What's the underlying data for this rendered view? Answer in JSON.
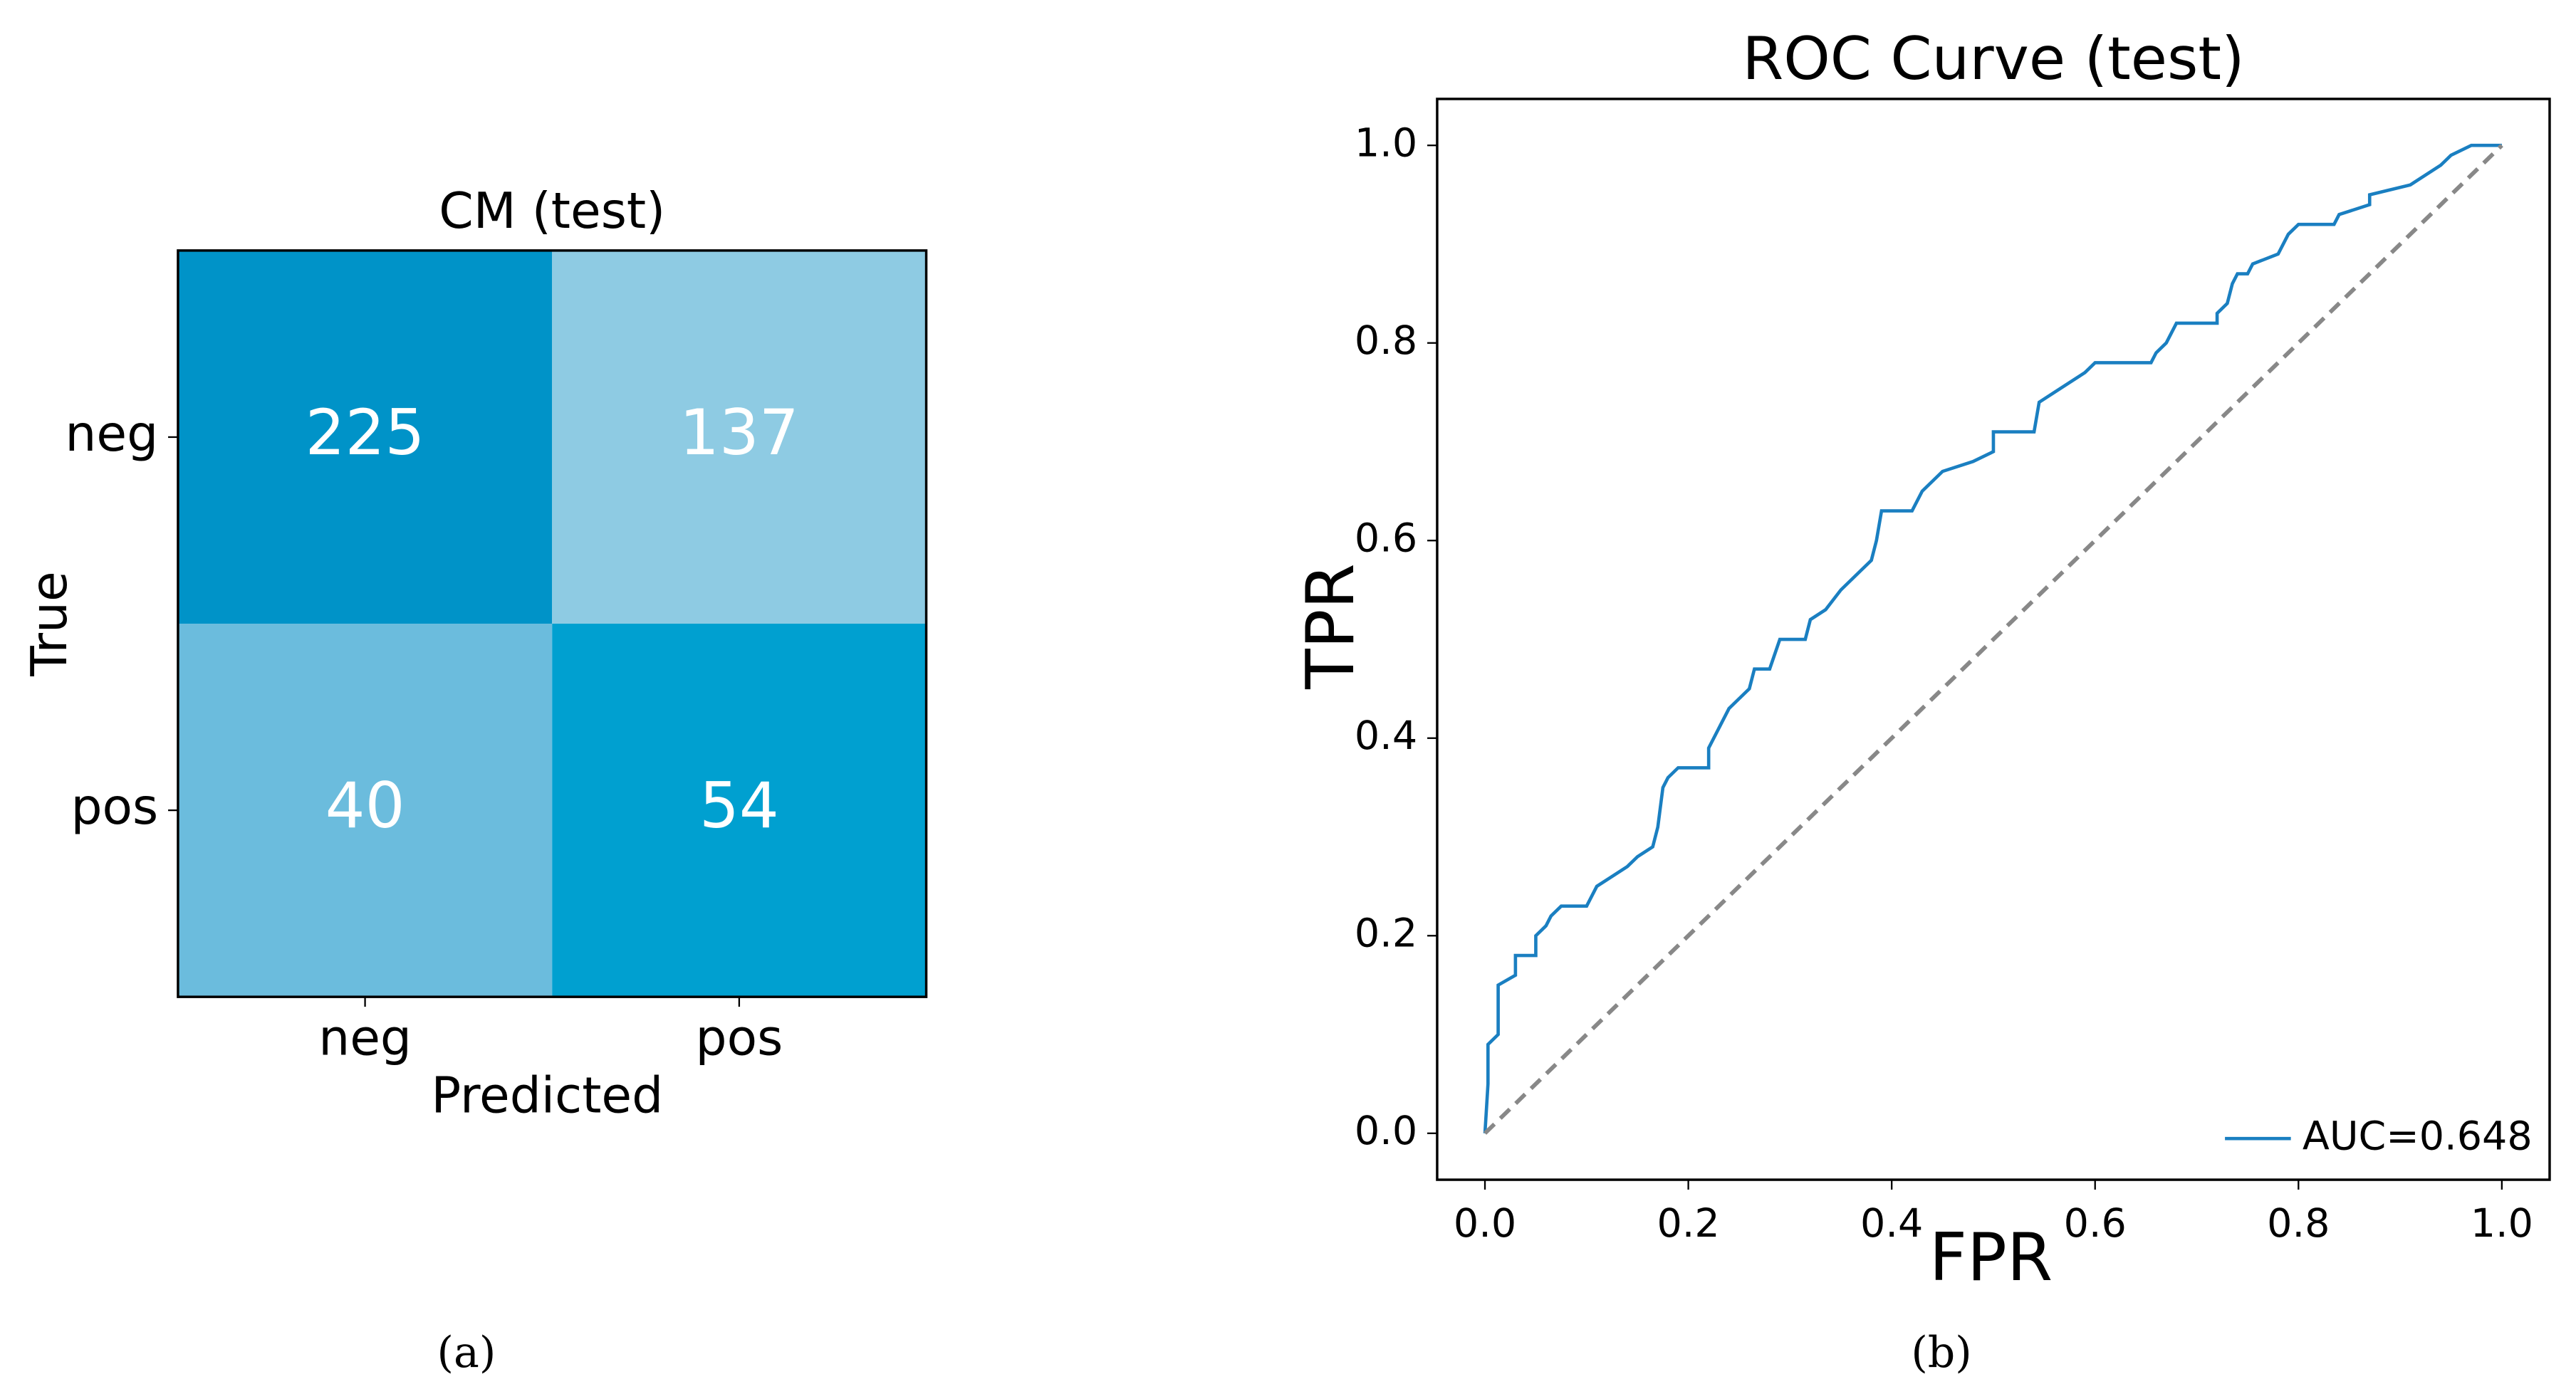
{
  "chart_data": [
    {
      "type": "heatmap",
      "title": "CM (test)",
      "xlabel": "Predicted",
      "ylabel": "True",
      "x_categories": [
        "neg",
        "pos"
      ],
      "y_categories": [
        "neg",
        "pos"
      ],
      "values": [
        [
          225,
          137
        ],
        [
          40,
          54
        ]
      ],
      "colors": [
        [
          "#0093c8",
          "#8ecbe3"
        ],
        [
          "#6bbcdd",
          "#00a0d0"
        ]
      ],
      "caption": "(a)"
    },
    {
      "type": "line",
      "title": "ROC Curve (test)",
      "xlabel": "FPR",
      "ylabel": "TPR",
      "xlim": [
        -0.047,
        1.047
      ],
      "ylim": [
        -0.047,
        1.047
      ],
      "xticks": [
        {
          "value": 0,
          "label": "0.0"
        },
        {
          "value": 0.2,
          "label": "0.2"
        },
        {
          "value": 0.4,
          "label": "0.4"
        },
        {
          "value": 0.6,
          "label": "0.6"
        },
        {
          "value": 0.8,
          "label": "0.8"
        },
        {
          "value": 1,
          "label": "1.0"
        }
      ],
      "yticks": [
        {
          "value": 0,
          "label": "0.0"
        },
        {
          "value": 0.2,
          "label": "0.2"
        },
        {
          "value": 0.4,
          "label": "0.4"
        },
        {
          "value": 0.6,
          "label": "0.6"
        },
        {
          "value": 0.8,
          "label": "0.8"
        },
        {
          "value": 1,
          "label": "1.0"
        }
      ],
      "legend": "lower right",
      "series": [
        {
          "name": "AUC=0.648",
          "color": "#1a7fc1",
          "x": [
            0,
            0.003,
            0.003,
            0.013,
            0.013,
            0.03,
            0.03,
            0.05,
            0.05,
            0.06,
            0.065,
            0.075,
            0.1,
            0.11,
            0.125,
            0.14,
            0.15,
            0.165,
            0.17,
            0.175,
            0.18,
            0.19,
            0.22,
            0.22,
            0.23,
            0.24,
            0.25,
            0.26,
            0.265,
            0.28,
            0.29,
            0.315,
            0.32,
            0.335,
            0.35,
            0.36,
            0.37,
            0.38,
            0.385,
            0.39,
            0.42,
            0.43,
            0.45,
            0.48,
            0.5,
            0.5,
            0.54,
            0.545,
            0.56,
            0.575,
            0.59,
            0.6,
            0.655,
            0.66,
            0.67,
            0.68,
            0.72,
            0.72,
            0.73,
            0.735,
            0.74,
            0.75,
            0.755,
            0.78,
            0.79,
            0.8,
            0.835,
            0.84,
            0.87,
            0.87,
            0.91,
            0.925,
            0.94,
            0.95,
            0.97,
            1
          ],
          "values": [
            0,
            0.05,
            0.09,
            0.1,
            0.15,
            0.16,
            0.18,
            0.18,
            0.2,
            0.21,
            0.22,
            0.23,
            0.23,
            0.25,
            0.26,
            0.27,
            0.28,
            0.29,
            0.31,
            0.35,
            0.36,
            0.37,
            0.37,
            0.39,
            0.41,
            0.43,
            0.44,
            0.45,
            0.47,
            0.47,
            0.5,
            0.5,
            0.52,
            0.53,
            0.55,
            0.56,
            0.57,
            0.58,
            0.6,
            0.63,
            0.63,
            0.65,
            0.67,
            0.68,
            0.69,
            0.71,
            0.71,
            0.74,
            0.75,
            0.76,
            0.77,
            0.78,
            0.78,
            0.79,
            0.8,
            0.82,
            0.82,
            0.83,
            0.84,
            0.86,
            0.87,
            0.87,
            0.88,
            0.89,
            0.91,
            0.92,
            0.92,
            0.93,
            0.94,
            0.95,
            0.96,
            0.97,
            0.98,
            0.99,
            1,
            1
          ]
        },
        {
          "color": "#888888",
          "dashed": true,
          "x": [
            0,
            1
          ],
          "values": [
            0,
            1
          ]
        }
      ],
      "caption": "(b)"
    }
  ]
}
